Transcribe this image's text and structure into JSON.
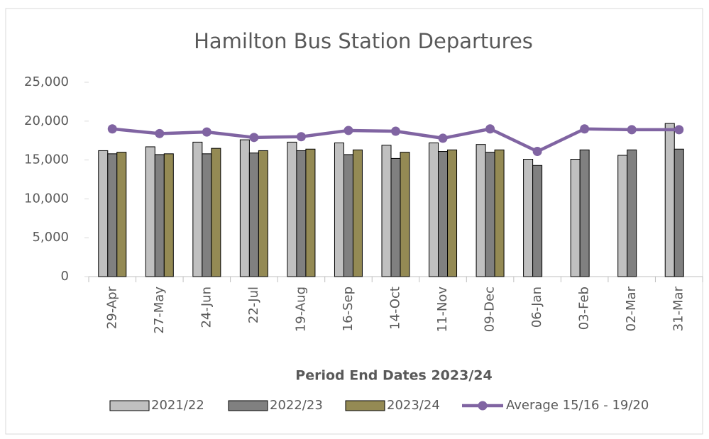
{
  "chart_data": {
    "type": "bar",
    "title": "Hamilton Bus Station Departures",
    "x_label": "Period End Dates 2023/24",
    "categories": [
      "29-Apr",
      "27-May",
      "24-Jun",
      "22-Jul",
      "19-Aug",
      "16-Sep",
      "14-Oct",
      "11-Nov",
      "09-Dec",
      "06-Jan",
      "03-Feb",
      "02-Mar",
      "31-Mar"
    ],
    "series": [
      {
        "name": "2021/22",
        "color": "#c0c0c0",
        "type": "bar",
        "values": [
          16200,
          16700,
          17300,
          17600,
          17300,
          17200,
          16900,
          17200,
          17000,
          15100,
          15100,
          15600,
          19700
        ]
      },
      {
        "name": "2022/23",
        "color": "#808080",
        "type": "bar",
        "values": [
          15800,
          15700,
          15800,
          15900,
          16200,
          15700,
          15200,
          16100,
          16000,
          14300,
          16300,
          16300,
          16400
        ]
      },
      {
        "name": "2023/24",
        "color": "#948a54",
        "type": "bar",
        "values": [
          16000,
          15800,
          16500,
          16200,
          16400,
          16300,
          16000,
          16300,
          16300,
          null,
          null,
          null,
          null
        ]
      },
      {
        "name": "Average 15/16 - 19/20",
        "color": "#8064a2",
        "type": "line",
        "values": [
          19000,
          18400,
          18600,
          17900,
          18000,
          18800,
          18700,
          17800,
          19000,
          16100,
          19000,
          18900,
          18900
        ]
      }
    ],
    "ylim": [
      0,
      25000
    ],
    "yticks": [
      0,
      {
        "value": 5000,
        "label": "5,000"
      },
      {
        "value": 10000,
        "label": "10,000"
      },
      {
        "value": 15000,
        "label": "15,000"
      },
      {
        "value": 20000,
        "label": "20,000"
      },
      {
        "value": 25000,
        "label": "25,000"
      }
    ],
    "legend": "bottom"
  }
}
